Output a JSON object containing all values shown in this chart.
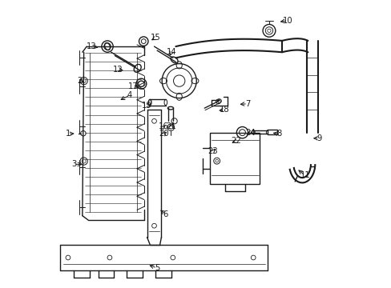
{
  "background_color": "#ffffff",
  "line_color": "#1a1a1a",
  "figsize": [
    4.89,
    3.6
  ],
  "dpi": 100,
  "label_positions": {
    "1": [
      0.055,
      0.535,
      0.085,
      0.537
    ],
    "2": [
      0.095,
      0.72,
      0.12,
      0.715
    ],
    "3": [
      0.075,
      0.43,
      0.112,
      0.428
    ],
    "4": [
      0.27,
      0.67,
      0.23,
      0.65
    ],
    "5": [
      0.365,
      0.068,
      0.33,
      0.08
    ],
    "6": [
      0.395,
      0.255,
      0.37,
      0.275
    ],
    "7": [
      0.68,
      0.64,
      0.645,
      0.638
    ],
    "8": [
      0.79,
      0.535,
      0.76,
      0.54
    ],
    "9": [
      0.93,
      0.52,
      0.9,
      0.52
    ],
    "10": [
      0.82,
      0.93,
      0.785,
      0.925
    ],
    "11": [
      0.88,
      0.39,
      0.85,
      0.415
    ],
    "12": [
      0.23,
      0.76,
      0.255,
      0.755
    ],
    "13": [
      0.138,
      0.84,
      0.168,
      0.835
    ],
    "14": [
      0.415,
      0.82,
      0.405,
      0.8
    ],
    "15": [
      0.36,
      0.87,
      0.338,
      0.858
    ],
    "16": [
      0.388,
      0.56,
      0.4,
      0.57
    ],
    "17": [
      0.282,
      0.7,
      0.31,
      0.696
    ],
    "18": [
      0.6,
      0.62,
      0.572,
      0.615
    ],
    "19": [
      0.33,
      0.635,
      0.352,
      0.628
    ],
    "20": [
      0.39,
      0.535,
      0.405,
      0.548
    ],
    "21": [
      0.415,
      0.56,
      0.42,
      0.573
    ],
    "22": [
      0.64,
      0.51,
      0.618,
      0.505
    ],
    "23": [
      0.56,
      0.475,
      0.572,
      0.49
    ],
    "24": [
      0.69,
      0.54,
      0.672,
      0.53
    ]
  }
}
